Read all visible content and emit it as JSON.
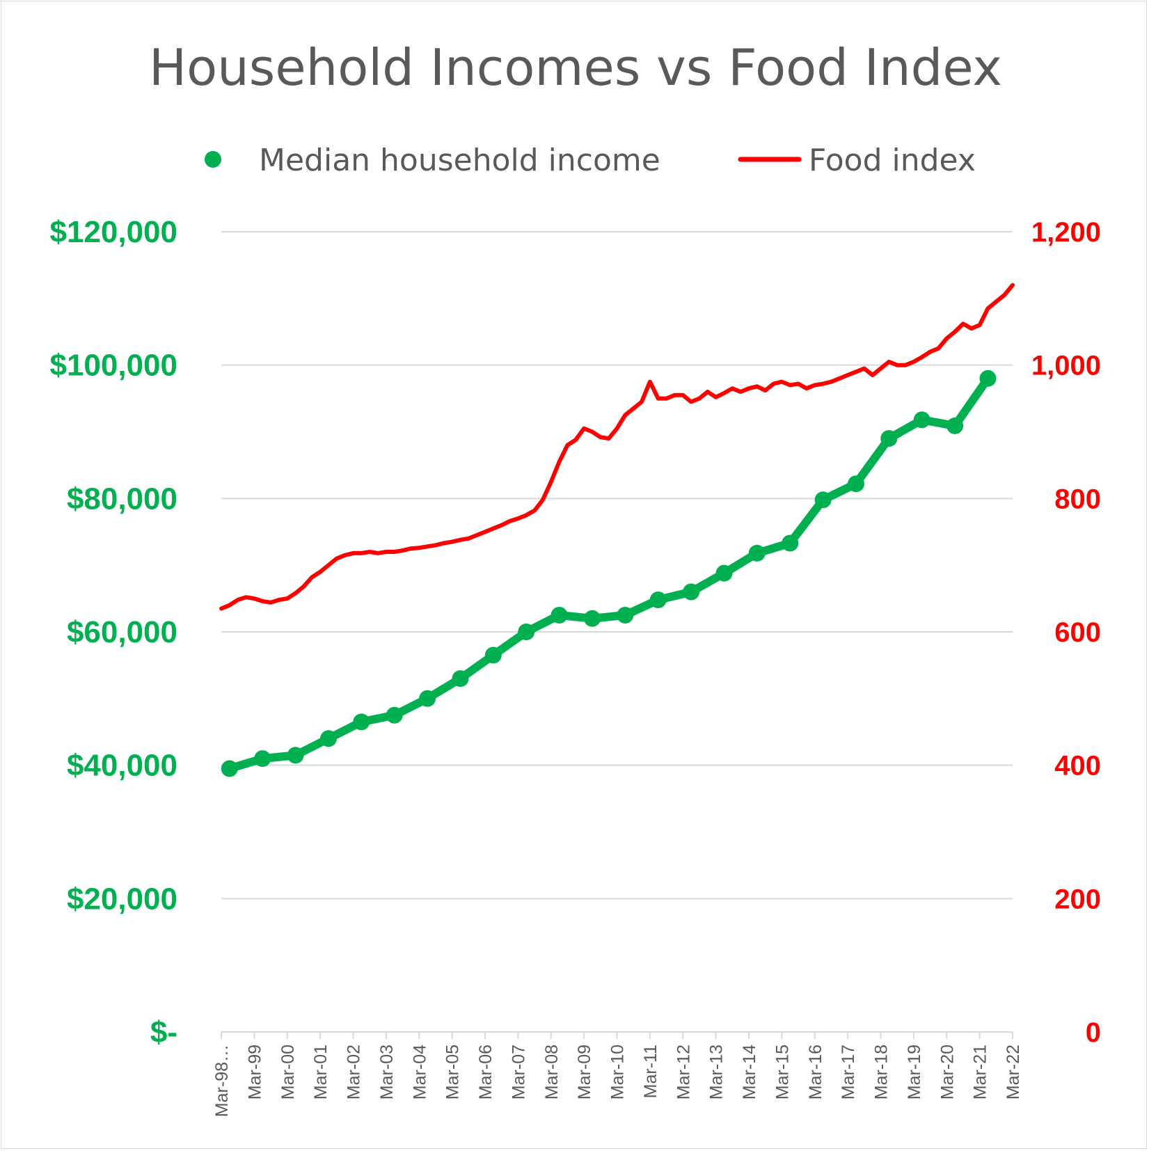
{
  "chart_data": {
    "type": "line",
    "title": "Household Incomes vs Food Index",
    "legend": {
      "placement": "top",
      "entries": [
        {
          "label": "Median household income",
          "marker": "circle"
        },
        {
          "label": "Food index",
          "marker": "line"
        }
      ]
    },
    "colors": {
      "income": "#00b050",
      "food": "#ff0000",
      "grid": "#d9d9d9",
      "text": "#595959"
    },
    "grid": true,
    "x_axis": {
      "type": "date",
      "range": [
        "1998-03",
        "2022-03"
      ],
      "tick_labels": [
        "Mar-98…",
        "Mar-99",
        "Mar-00",
        "Mar-01",
        "Mar-02",
        "Mar-03",
        "Mar-04",
        "Mar-05",
        "Mar-06",
        "Mar-07",
        "Mar-08",
        "Mar-09",
        "Mar-10",
        "Mar-11",
        "Mar-12",
        "Mar-13",
        "Mar-14",
        "Mar-15",
        "Mar-16",
        "Mar-17",
        "Mar-18",
        "Mar-19",
        "Mar-20",
        "Mar-21",
        "Mar-22"
      ]
    },
    "y_axis_left": {
      "range": [
        0,
        120000
      ],
      "tick_labels": [
        "$-",
        "$20,000",
        "$40,000",
        "$60,000",
        "$80,000",
        "$100,000",
        "$120,000"
      ]
    },
    "y_axis_right": {
      "range": [
        0,
        1200
      ],
      "tick_labels": [
        "0",
        "200",
        "400",
        "600",
        "800",
        "1,000",
        "1,200"
      ]
    },
    "series": [
      {
        "name": "Median household income",
        "axis": "left",
        "style": "line-markers",
        "x": [
          "1998-06",
          "1999-06",
          "2000-06",
          "2001-06",
          "2002-06",
          "2003-06",
          "2004-06",
          "2005-06",
          "2006-06",
          "2007-06",
          "2008-06",
          "2009-06",
          "2010-06",
          "2011-06",
          "2012-06",
          "2013-06",
          "2014-06",
          "2015-06",
          "2016-06",
          "2017-06",
          "2018-06",
          "2019-06",
          "2020-06",
          "2021-06"
        ],
        "y": [
          39500,
          41000,
          41500,
          44000,
          46500,
          47500,
          50000,
          53000,
          56500,
          60000,
          62500,
          62000,
          62500,
          64800,
          66000,
          68800,
          71800,
          73300,
          79800,
          82200,
          89000,
          91800,
          90900,
          98000
        ]
      },
      {
        "name": "Food index",
        "axis": "right",
        "style": "line",
        "x": [
          "1998-03",
          "1998-06",
          "1998-09",
          "1998-12",
          "1999-03",
          "1999-06",
          "1999-09",
          "1999-12",
          "2000-03",
          "2000-06",
          "2000-09",
          "2000-12",
          "2001-03",
          "2001-06",
          "2001-09",
          "2001-12",
          "2002-03",
          "2002-06",
          "2002-09",
          "2002-12",
          "2003-03",
          "2003-06",
          "2003-09",
          "2003-12",
          "2004-03",
          "2004-06",
          "2004-09",
          "2004-12",
          "2005-03",
          "2005-06",
          "2005-09",
          "2005-12",
          "2006-03",
          "2006-06",
          "2006-09",
          "2006-12",
          "2007-03",
          "2007-06",
          "2007-09",
          "2007-12",
          "2008-03",
          "2008-06",
          "2008-09",
          "2008-12",
          "2009-03",
          "2009-06",
          "2009-09",
          "2009-12",
          "2010-03",
          "2010-06",
          "2010-09",
          "2010-12",
          "2011-03",
          "2011-06",
          "2011-09",
          "2011-12",
          "2012-03",
          "2012-06",
          "2012-09",
          "2012-12",
          "2013-03",
          "2013-06",
          "2013-09",
          "2013-12",
          "2014-03",
          "2014-06",
          "2014-09",
          "2014-12",
          "2015-03",
          "2015-06",
          "2015-09",
          "2015-12",
          "2016-03",
          "2016-06",
          "2016-09",
          "2016-12",
          "2017-03",
          "2017-06",
          "2017-09",
          "2017-12",
          "2018-03",
          "2018-06",
          "2018-09",
          "2018-12",
          "2019-03",
          "2019-06",
          "2019-09",
          "2019-12",
          "2020-03",
          "2020-06",
          "2020-09",
          "2020-12",
          "2021-03",
          "2021-06",
          "2021-09",
          "2021-12",
          "2022-03"
        ],
        "y": [
          635,
          640,
          648,
          652,
          650,
          646,
          644,
          648,
          650,
          658,
          668,
          682,
          690,
          700,
          710,
          715,
          718,
          718,
          720,
          718,
          720,
          720,
          722,
          725,
          726,
          728,
          730,
          733,
          735,
          738,
          740,
          745,
          750,
          755,
          760,
          766,
          770,
          775,
          782,
          798,
          825,
          855,
          880,
          888,
          905,
          900,
          892,
          890,
          905,
          925,
          935,
          945,
          975,
          950,
          950,
          955,
          955,
          945,
          950,
          960,
          952,
          958,
          965,
          960,
          965,
          968,
          962,
          972,
          975,
          970,
          972,
          965,
          970,
          972,
          975,
          980,
          985,
          990,
          995,
          985,
          995,
          1005,
          1000,
          1000,
          1005,
          1012,
          1020,
          1025,
          1040,
          1050,
          1062,
          1055,
          1060,
          1085,
          1095,
          1105,
          1120
        ]
      }
    ]
  }
}
